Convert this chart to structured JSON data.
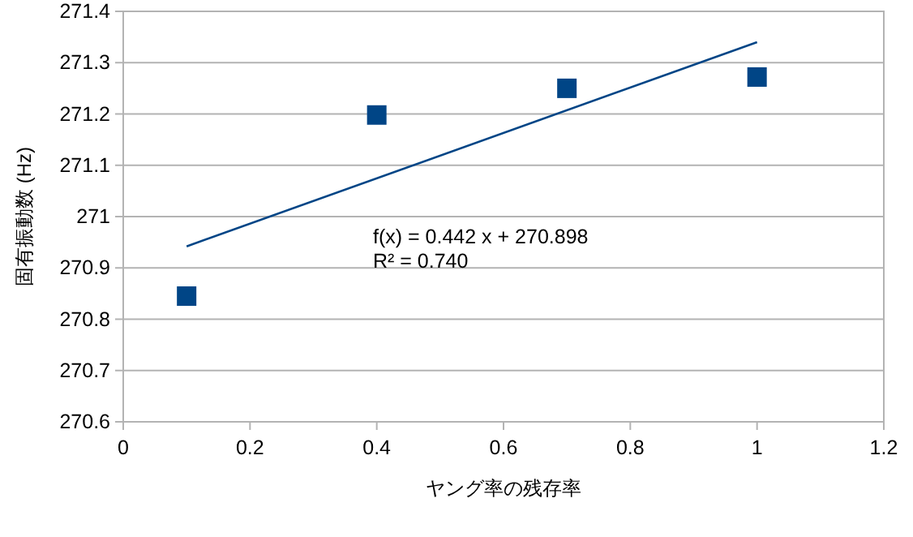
{
  "chart_data": {
    "type": "scatter",
    "xlabel": "ヤング率の残存率",
    "ylabel": "固有振動数 (Hz)",
    "series": [
      {
        "type": "scatter",
        "color": "#004586",
        "marker": "square",
        "x": [
          0.1,
          0.4,
          0.7,
          1.0
        ],
        "values": [
          270.845,
          271.198,
          271.25,
          271.272
        ]
      },
      {
        "type": "line",
        "color": "#004586",
        "line_style": "solid",
        "x": [
          0.1,
          1.0
        ],
        "values": [
          270.942,
          271.34
        ]
      }
    ],
    "xlim": [
      0,
      1.2
    ],
    "xticks": [
      0,
      0.2,
      0.4,
      0.6,
      0.8,
      1,
      1.2
    ],
    "ylim": [
      270.6,
      271.4
    ],
    "yticks": [
      270.6,
      270.7,
      270.8,
      270.9,
      271,
      271.1,
      271.2,
      271.3,
      271.4
    ],
    "grid": "y",
    "annotations": [
      "f(x) = 0.442 x + 270.898",
      "R² = 0.740"
    ]
  }
}
